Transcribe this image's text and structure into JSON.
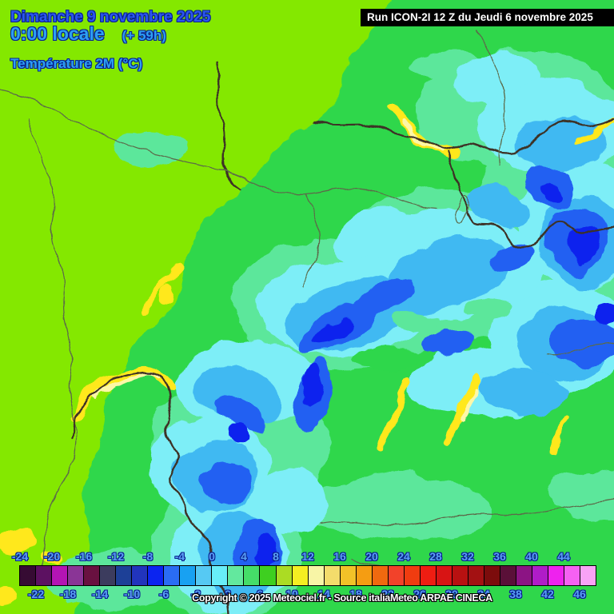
{
  "header": {
    "date_line": "Dimanche 9 novembre 2025",
    "time_line": "0:00 locale",
    "offset_label": "(+ 59h)",
    "variable_label": "Température 2M (°C)",
    "text_color_date": "#2b57f0",
    "text_color_accent": "#2da0f2",
    "text_outline": "#0a2090"
  },
  "run_banner": {
    "text": "Run ICON-2I 12 Z du Jeudi 6 novembre 2025",
    "bg": "#000000",
    "text_color": "#ffffff"
  },
  "footer": {
    "copyright": "Copyright © 2025 Meteociel.fr - Source italiaMeteo ARPAE CINECA",
    "text_color": "#ffffff"
  },
  "colorbar": {
    "unit": "°C",
    "min": -24,
    "max": 46,
    "step": 2,
    "top_labels": [
      "-24",
      "-20",
      "-16",
      "-12",
      "-8",
      "-4",
      "0",
      "4",
      "8",
      "12",
      "16",
      "20",
      "24",
      "28",
      "32",
      "36",
      "40",
      "44"
    ],
    "bottom_labels": [
      "-22",
      "-18",
      "-14",
      "-10",
      "-6",
      "-2",
      "2",
      "6",
      "10",
      "14",
      "18",
      "22",
      "26",
      "30",
      "34",
      "38",
      "42",
      "46"
    ],
    "label_color": "#5aa0f5",
    "cell_colors": [
      "#360b33",
      "#5c1161",
      "#b414b4",
      "#8a3596",
      "#691140",
      "#3c3c5e",
      "#1d4097",
      "#2134bc",
      "#0b24f0",
      "#2a6cf4",
      "#18a1f2",
      "#56c9f3",
      "#68eef8",
      "#63e89e",
      "#45dd68",
      "#3ecf20",
      "#abdc23",
      "#f5ee22",
      "#f8f5a6",
      "#f3dc6b",
      "#f2c228",
      "#f59d12",
      "#f0690f",
      "#f2422a",
      "#f03c10",
      "#ee1d12",
      "#d81414",
      "#b81111",
      "#a31112",
      "#7c0c0c",
      "#5a1038",
      "#8c1484",
      "#b01cc8",
      "#ee22ee",
      "#f561f2",
      "#f9a3f6"
    ]
  },
  "map": {
    "palette": {
      "green": "#2fd74b",
      "chartreuse": "#84e800",
      "mint": "#5ce79b",
      "cyan": "#7deef7",
      "sky": "#3fb9f2",
      "royal": "#2161f2",
      "deep": "#0a23ee",
      "yellow": "#ffe81a",
      "pale_yellow": "#fdf7a8",
      "border_thin": "#5b6b4a",
      "border_thick": "#3d3226"
    }
  }
}
